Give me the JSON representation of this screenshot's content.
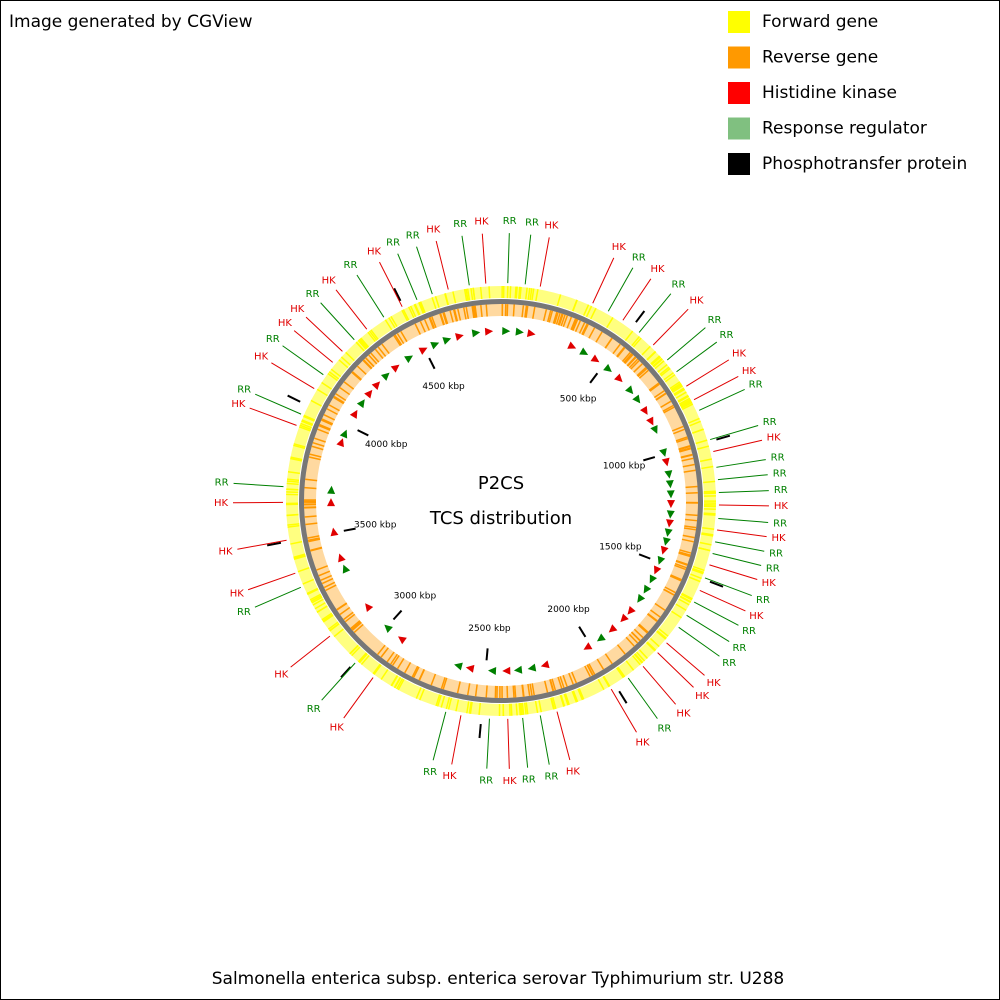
{
  "header": "Image generated by CGView",
  "legend": [
    {
      "label": "Forward gene",
      "color": "#ffff00"
    },
    {
      "label": "Reverse gene",
      "color": "#ff9900"
    },
    {
      "label": "Histidine kinase",
      "color": "#ff0000"
    },
    {
      "label": "Response regulator",
      "color": "#80c080"
    },
    {
      "label": "Phosphotransfer protein",
      "color": "#000000"
    }
  ],
  "map": {
    "title": "P2CS",
    "subtitle": "TCS distribution",
    "xlim": [
      0,
      4860
    ],
    "xticks": [
      {
        "value": 500,
        "label": "500 kbp"
      },
      {
        "value": 1000,
        "label": "1000 kbp"
      },
      {
        "value": 1500,
        "label": "1500 kbp"
      },
      {
        "value": 2000,
        "label": "2000 kbp"
      },
      {
        "value": 2500,
        "label": "2500 kbp"
      },
      {
        "value": 3000,
        "label": "3000 kbp"
      },
      {
        "value": 3500,
        "label": "3500 kbp"
      },
      {
        "value": 4000,
        "label": "4000 kbp"
      },
      {
        "value": 4500,
        "label": "4500 kbp"
      }
    ],
    "features": [
      {
        "label": "RR",
        "position": 24,
        "color": "#008000"
      },
      {
        "label": "RR",
        "position": 86,
        "color": "#008000"
      },
      {
        "label": "HK",
        "position": 140,
        "color": "#e00000"
      },
      {
        "label": "HK",
        "position": 336,
        "color": "#e00000"
      },
      {
        "label": "RR",
        "position": 398,
        "color": "#008000"
      },
      {
        "label": "HK",
        "position": 459,
        "color": "#e00000"
      },
      {
        "label": "RR",
        "position": 531,
        "color": "#008000"
      },
      {
        "label": "HK",
        "position": 598,
        "color": "#e00000"
      },
      {
        "label": "RR",
        "position": 671,
        "color": "#008000"
      },
      {
        "label": "RR",
        "position": 724,
        "color": "#008000"
      },
      {
        "label": "HK",
        "position": 786,
        "color": "#e00000"
      },
      {
        "label": "HK",
        "position": 841,
        "color": "#e00000"
      },
      {
        "label": "RR",
        "position": 883,
        "color": "#008000"
      },
      {
        "label": "RR",
        "position": 994,
        "color": "#008000"
      },
      {
        "label": "HK",
        "position": 1038,
        "color": "#e00000"
      },
      {
        "label": "RR",
        "position": 1095,
        "color": "#008000"
      },
      {
        "label": "RR",
        "position": 1139,
        "color": "#008000"
      },
      {
        "label": "RR",
        "position": 1185,
        "color": "#008000"
      },
      {
        "label": "HK",
        "position": 1229,
        "color": "#e00000"
      },
      {
        "label": "RR",
        "position": 1277,
        "color": "#008000"
      },
      {
        "label": "HK",
        "position": 1318,
        "color": "#e00000"
      },
      {
        "label": "RR",
        "position": 1361,
        "color": "#008000"
      },
      {
        "label": "RR",
        "position": 1403,
        "color": "#008000"
      },
      {
        "label": "HK",
        "position": 1445,
        "color": "#e00000"
      },
      {
        "label": "RR",
        "position": 1494,
        "color": "#008000"
      },
      {
        "label": "HK",
        "position": 1542,
        "color": "#e00000"
      },
      {
        "label": "RR",
        "position": 1588,
        "color": "#008000"
      },
      {
        "label": "RR",
        "position": 1642,
        "color": "#008000"
      },
      {
        "label": "RR",
        "position": 1693,
        "color": "#008000"
      },
      {
        "label": "HK",
        "position": 1763,
        "color": "#e00000"
      },
      {
        "label": "HK",
        "position": 1810,
        "color": "#e00000"
      },
      {
        "label": "HK",
        "position": 1881,
        "color": "#e00000"
      },
      {
        "label": "RR",
        "position": 1948,
        "color": "#008000"
      },
      {
        "label": "HK",
        "position": 2020,
        "color": "#e00000"
      },
      {
        "label": "HK",
        "position": 2229,
        "color": "#e00000"
      },
      {
        "label": "RR",
        "position": 2290,
        "color": "#008000"
      },
      {
        "label": "RR",
        "position": 2353,
        "color": "#008000"
      },
      {
        "label": "HK",
        "position": 2406,
        "color": "#e00000"
      },
      {
        "label": "RR",
        "position": 2471,
        "color": "#008000"
      },
      {
        "label": "HK",
        "position": 2573,
        "color": "#e00000"
      },
      {
        "label": "RR",
        "position": 2628,
        "color": "#008000"
      },
      {
        "label": "HK",
        "position": 2915,
        "color": "#e00000"
      },
      {
        "label": "RR",
        "position": 2997,
        "color": "#008000"
      },
      {
        "label": "HK",
        "position": 3128,
        "color": "#e00000"
      },
      {
        "label": "RR",
        "position": 3330,
        "color": "#008000"
      },
      {
        "label": "HK",
        "position": 3384,
        "color": "#e00000"
      },
      {
        "label": "HK",
        "position": 3505,
        "color": "#e00000"
      },
      {
        "label": "HK",
        "position": 3640,
        "color": "#e00000"
      },
      {
        "label": "RR",
        "position": 3696,
        "color": "#008000"
      },
      {
        "label": "HK",
        "position": 3919,
        "color": "#e00000"
      },
      {
        "label": "RR",
        "position": 3962,
        "color": "#008000"
      },
      {
        "label": "HK",
        "position": 4064,
        "color": "#e00000"
      },
      {
        "label": "RR",
        "position": 4123,
        "color": "#008000"
      },
      {
        "label": "HK",
        "position": 4178,
        "color": "#e00000"
      },
      {
        "label": "HK",
        "position": 4230,
        "color": "#e00000"
      },
      {
        "label": "RR",
        "position": 4289,
        "color": "#008000"
      },
      {
        "label": "HK",
        "position": 4347,
        "color": "#e00000"
      },
      {
        "label": "RR",
        "position": 4421,
        "color": "#008000"
      },
      {
        "label": "HK",
        "position": 4496,
        "color": "#e00000"
      },
      {
        "label": "RR",
        "position": 4554,
        "color": "#008000"
      },
      {
        "label": "RR",
        "position": 4612,
        "color": "#008000"
      },
      {
        "label": "HK",
        "position": 4671,
        "color": "#e00000"
      },
      {
        "label": "RR",
        "position": 4747,
        "color": "#008000"
      },
      {
        "label": "HK",
        "position": 4806,
        "color": "#e00000"
      }
    ]
  },
  "footer": "Salmonella enterica subsp. enterica serovar Typhimurium str. U288"
}
